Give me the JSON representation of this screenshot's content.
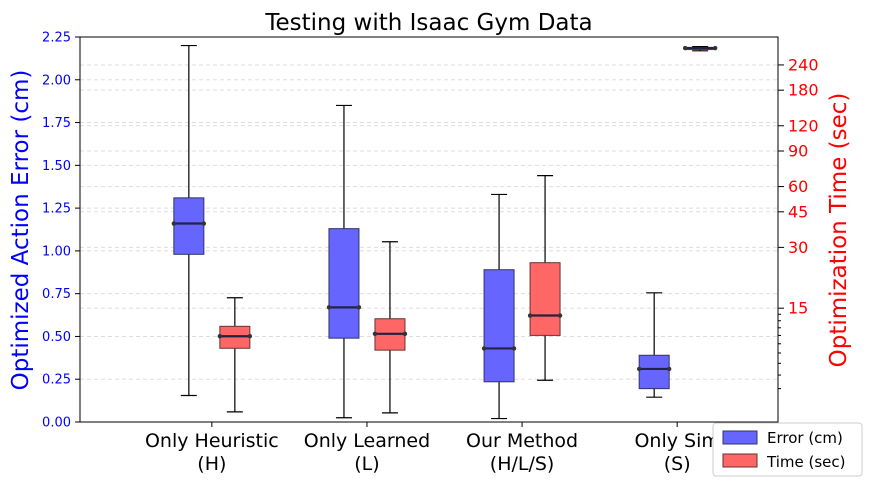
{
  "chart_data": {
    "type": "boxplot",
    "title": "Testing with Isaac Gym Data",
    "ylabel_left": "Optimized Action Error (cm)",
    "ylabel_right": "Optimization Time (sec)",
    "ylim_left": [
      0,
      2.25
    ],
    "left_ticks": [
      "0.00",
      "0.25",
      "0.50",
      "0.75",
      "1.00",
      "1.25",
      "1.50",
      "1.75",
      "2.00",
      "2.25"
    ],
    "right_scale": "log",
    "right_ticks": [
      "15",
      "30",
      "45",
      "60",
      "90",
      "120",
      "180",
      "240"
    ],
    "right_tick_values": [
      15,
      30,
      45,
      60,
      90,
      120,
      180,
      240
    ],
    "right_minor_values": [
      6,
      7,
      8,
      9,
      10,
      11,
      12,
      13,
      14
    ],
    "ylim_right": [
      4.1,
      330
    ],
    "categories": [
      [
        "Only Heuristic",
        "(H)"
      ],
      [
        "Only Learned",
        "(L)"
      ],
      [
        "Our Method",
        "(H/L/S)"
      ],
      [
        "Only Sim",
        "(S)"
      ]
    ],
    "grid": "horizontal dashed",
    "legend_position": "bottom-right",
    "series": [
      {
        "name": "Error (cm)",
        "color": "#6666ff",
        "axis": "left",
        "boxes": [
          {
            "whislo": 0.155,
            "q1": 0.98,
            "median": 1.16,
            "q3": 1.31,
            "whishi": 2.2
          },
          {
            "whislo": 0.025,
            "q1": 0.49,
            "median": 0.67,
            "q3": 1.13,
            "whishi": 1.85
          },
          {
            "whislo": 0.02,
            "q1": 0.235,
            "median": 0.43,
            "q3": 0.89,
            "whishi": 1.33
          },
          {
            "whislo": 0.145,
            "q1": 0.195,
            "median": 0.31,
            "q3": 0.39,
            "whishi": 0.755
          }
        ]
      },
      {
        "name": "Time (sec)",
        "color": "#ff6666",
        "axis": "right",
        "boxes": [
          {
            "whislo": 4.6,
            "q1": 9.5,
            "median": 10.9,
            "q3": 12.2,
            "whishi": 16.9
          },
          {
            "whislo": 4.55,
            "q1": 9.3,
            "median": 11.2,
            "q3": 13.3,
            "whishi": 32.0
          },
          {
            "whislo": 6.6,
            "q1": 11.0,
            "median": 13.8,
            "q3": 25.2,
            "whishi": 68.0
          },
          {
            "whislo": 282,
            "q1": 286,
            "median": 291,
            "q3": 292,
            "whishi": 296
          }
        ]
      }
    ]
  }
}
